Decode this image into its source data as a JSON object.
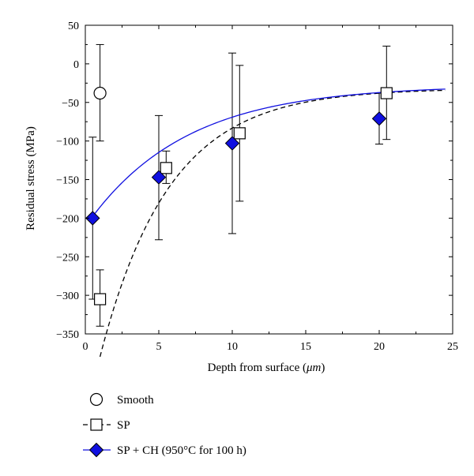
{
  "chart_data": {
    "type": "scatter",
    "xlabel_main": "Depth from surface (",
    "xlabel_unit": "μm",
    "xlabel_end": ")",
    "ylabel": "Residual stress (MPa)",
    "xlim": [
      0,
      25
    ],
    "ylim": [
      -350,
      50
    ],
    "xticks": [
      0,
      5,
      10,
      15,
      20,
      25
    ],
    "yticks": [
      50,
      0,
      -50,
      -100,
      -150,
      -200,
      -250,
      -300,
      -350
    ],
    "grid": false,
    "legend_placement": "bottom-left below chart",
    "series": [
      {
        "name": "Smooth",
        "marker": "circle",
        "color": "#000000",
        "line": "none",
        "points": [
          {
            "x": 1.0,
            "y": -38,
            "err_low": -100,
            "err_high": 25
          }
        ]
      },
      {
        "name": "SP",
        "marker": "square",
        "color": "#000000",
        "line": "dashed",
        "points": [
          {
            "x": 1.0,
            "y": -305,
            "err_low": -340,
            "err_high": -267
          },
          {
            "x": 5.5,
            "y": -135,
            "err_low": -155,
            "err_high": -113
          },
          {
            "x": 10.5,
            "y": -90,
            "err_low": -178,
            "err_high": -2
          },
          {
            "x": 20.5,
            "y": -38,
            "err_low": -98,
            "err_high": 23
          }
        ],
        "fit": {
          "asymptote": -32,
          "amplitude": -430,
          "decay": 4.7,
          "x_start": 1.0,
          "x_end": 24.5
        }
      },
      {
        "name": "SP + CH (950°C for 100 h)",
        "marker": "diamond",
        "color": "#1010e0",
        "line": "solid",
        "points": [
          {
            "x": 0.5,
            "y": -200,
            "err_low": -305,
            "err_high": -95
          },
          {
            "x": 5.0,
            "y": -147,
            "err_low": -228,
            "err_high": -67
          },
          {
            "x": 10.0,
            "y": -103,
            "err_low": -220,
            "err_high": 14
          },
          {
            "x": 20.0,
            "y": -71,
            "err_low": -104,
            "err_high": -38
          }
        ],
        "fit": {
          "asymptote": -28,
          "amplitude": -183,
          "decay": 6.7,
          "x_start": 0.4,
          "x_end": 24.5
        }
      }
    ],
    "legend": [
      {
        "label": "Smooth",
        "marker": "circle",
        "line": "none"
      },
      {
        "label": "SP",
        "marker": "square",
        "line": "dashed"
      },
      {
        "label": "SP + CH (950°C for 100 h)",
        "marker": "diamond",
        "line": "solid"
      }
    ]
  },
  "colors": {
    "axis": "#000000",
    "sp_ch": "#1010e0"
  }
}
